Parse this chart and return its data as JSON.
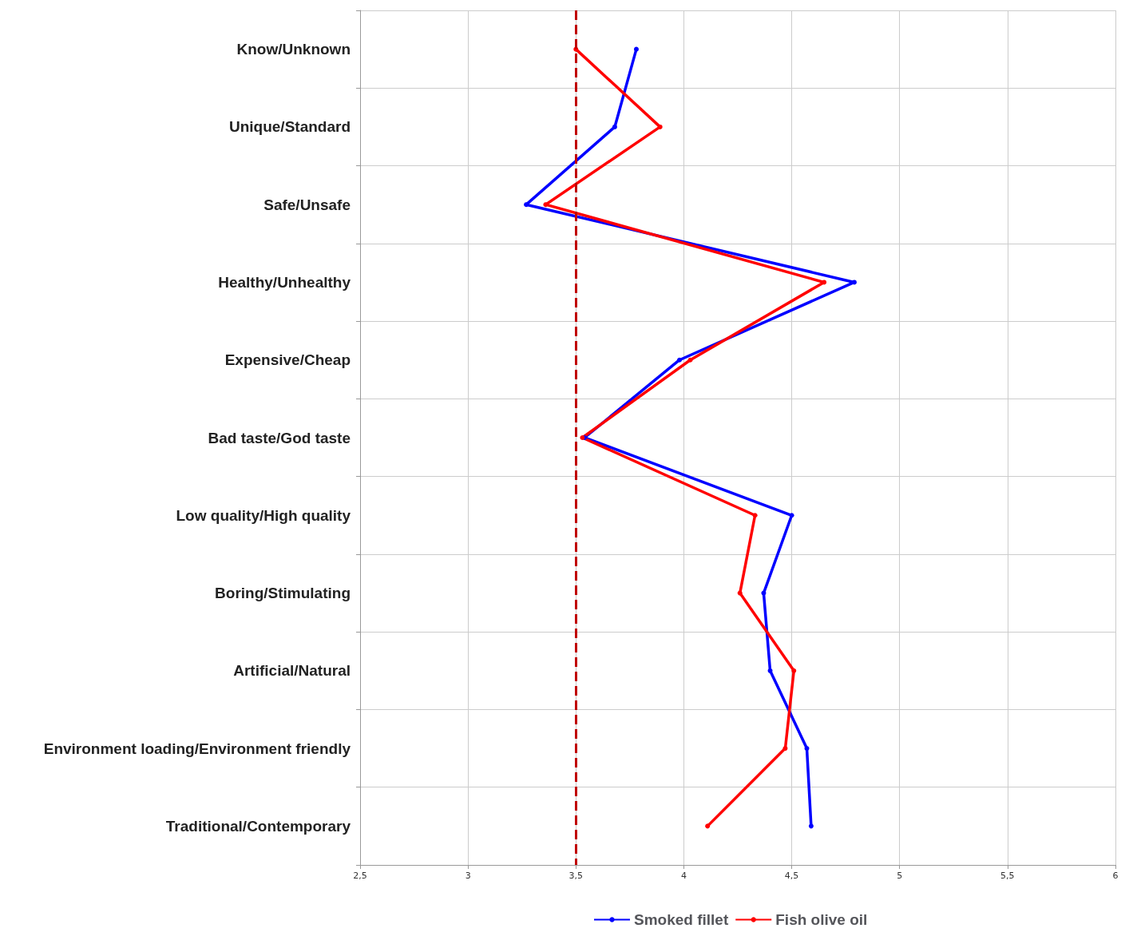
{
  "chart_data": {
    "type": "line",
    "orientation": "horizontal",
    "categories": [
      "Know/Unknown",
      "Unique/Standard",
      "Safe/Unsafe",
      "Healthy/Unhealthy",
      "Expensive/Cheap",
      "Bad taste/God taste",
      "Low quality/High quality",
      "Boring/Stimulating",
      "Artificial/Natural",
      "Environment loading/Environment friendly",
      "Traditional/Contemporary"
    ],
    "series": [
      {
        "name": "Smoked fillet",
        "color": "#0000ff",
        "values": [
          3.78,
          3.68,
          3.27,
          4.79,
          3.98,
          3.54,
          4.5,
          4.37,
          4.4,
          4.57,
          4.59
        ]
      },
      {
        "name": "Fish olive oil",
        "color": "#ff0000",
        "values": [
          3.5,
          3.89,
          3.36,
          4.65,
          4.03,
          3.53,
          4.33,
          4.26,
          4.51,
          4.47,
          4.11
        ]
      }
    ],
    "xlim": [
      2.5,
      6
    ],
    "xticks": [
      {
        "value": 2.5,
        "label": "2,5"
      },
      3,
      {
        "value": 3.5,
        "label": "3,5"
      },
      4,
      {
        "value": 4.5,
        "label": "4,5"
      },
      5,
      {
        "value": 5.5,
        "label": "5,5"
      },
      6
    ],
    "ref_lines": [
      {
        "axis": "x",
        "value": 3.5,
        "color": "#c00000",
        "line_style": "dashed"
      }
    ],
    "grid": true,
    "legend": "bottom",
    "marker": "circle",
    "line_style": "solid"
  }
}
